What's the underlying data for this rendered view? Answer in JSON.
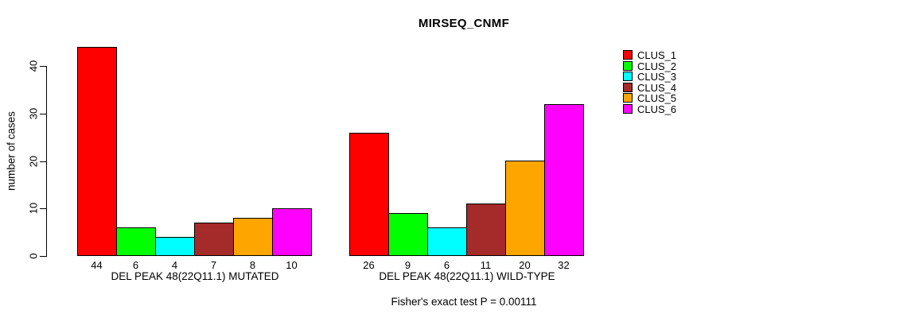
{
  "page": {
    "background": "#FFFFFF",
    "text_color": "#000000"
  },
  "chart_data": {
    "type": "bar",
    "title": "MIRSEQ_CNMF",
    "ylabel": "number of cases",
    "xlabel": "",
    "ylim": [
      0,
      44
    ],
    "yticks": [
      0,
      10,
      20,
      30,
      40
    ],
    "grid": false,
    "legend_position": "right",
    "bar_border_color": "#000000",
    "categories": [
      "DEL PEAK 48(22Q11.1) MUTATED",
      "DEL PEAK 48(22Q11.1) WILD-TYPE"
    ],
    "series": [
      {
        "name": "CLUS_1",
        "color": "#FF0000",
        "values": [
          44,
          26
        ]
      },
      {
        "name": "CLUS_2",
        "color": "#00FF00",
        "values": [
          6,
          9
        ]
      },
      {
        "name": "CLUS_3",
        "color": "#00FFFF",
        "values": [
          4,
          6
        ]
      },
      {
        "name": "CLUS_4",
        "color": "#A52A2A",
        "values": [
          7,
          11
        ]
      },
      {
        "name": "CLUS_5",
        "color": "#FFA500",
        "values": [
          8,
          20
        ]
      },
      {
        "name": "CLUS_6",
        "color": "#FF00FF",
        "values": [
          10,
          32
        ]
      }
    ],
    "bar_value_labels_shown": true,
    "annotation": "Fisher's exact test P = 0.00111"
  }
}
